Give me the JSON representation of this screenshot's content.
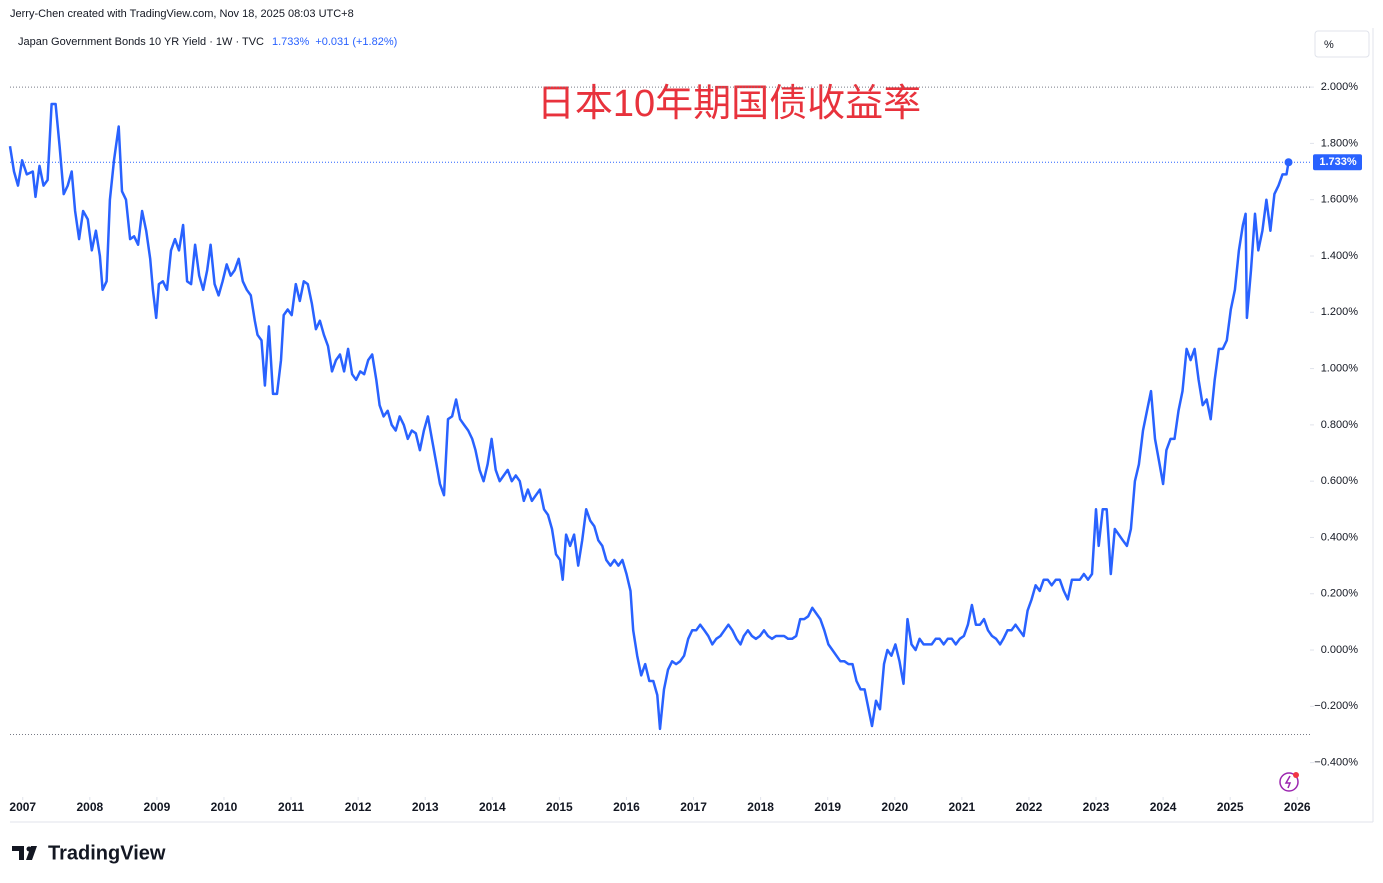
{
  "chart_data": {
    "type": "line",
    "credit": "Jerry-Chen created with TradingView.com, Nov 18, 2025 08:03 UTC+8",
    "title": "日本10年期国债收益率",
    "price": {
      "value": 1.733,
      "label": "1.733%"
    },
    "change": "+0.031 (+1.82%)",
    "unit_button": "%",
    "brand": "TradingView",
    "xlim": [
      2006.81,
      2026.19
    ],
    "xticks": [
      2007,
      2008,
      2009,
      2010,
      2011,
      2012,
      2013,
      2014,
      2015,
      2016,
      2017,
      2018,
      2019,
      2020,
      2021,
      2022,
      2023,
      2024,
      2025,
      2026
    ],
    "ylim": [
      -0.515,
      2.21
    ],
    "yticks": [
      {
        "value": 2.0,
        "label": "2.000%"
      },
      {
        "value": 1.8,
        "label": "1.800%"
      },
      {
        "value": 1.6,
        "label": "1.600%"
      },
      {
        "value": 1.4,
        "label": "1.400%"
      },
      {
        "value": 1.2,
        "label": "1.200%"
      },
      {
        "value": 1.0,
        "label": "1.000%"
      },
      {
        "value": 0.8,
        "label": "0.800%"
      },
      {
        "value": 0.6,
        "label": "0.600%"
      },
      {
        "value": 0.4,
        "label": "0.400%"
      },
      {
        "value": 0.2,
        "label": "0.200%"
      },
      {
        "value": 0,
        "label": "0.000%"
      },
      {
        "value": -0.2,
        "label": "−0.200%"
      },
      {
        "value": -0.4,
        "label": "−0.400%"
      }
    ],
    "hlines": [
      2.0,
      -0.3
    ],
    "grid": false,
    "x": [
      2006.81,
      2006.87,
      2006.93,
      2006.99,
      2007.06,
      2007.15,
      2007.19,
      2007.25,
      2007.31,
      2007.37,
      2007.43,
      2007.49,
      2007.55,
      2007.61,
      2007.67,
      2007.73,
      2007.78,
      2007.84,
      2007.9,
      2007.97,
      2008.03,
      2008.09,
      2008.15,
      2008.19,
      2008.25,
      2008.3,
      2008.36,
      2008.43,
      2008.48,
      2008.54,
      2008.6,
      2008.66,
      2008.72,
      2008.78,
      2008.84,
      2008.9,
      2008.94,
      2008.99,
      2009.03,
      2009.09,
      2009.15,
      2009.21,
      2009.27,
      2009.33,
      2009.39,
      2009.45,
      2009.51,
      2009.57,
      2009.63,
      2009.69,
      2009.75,
      2009.8,
      2009.86,
      2009.92,
      2009.98,
      2010.04,
      2010.1,
      2010.16,
      2010.22,
      2010.28,
      2010.34,
      2010.4,
      2010.46,
      2010.5,
      2010.56,
      2010.61,
      2010.67,
      2010.73,
      2010.79,
      2010.85,
      2010.89,
      2010.95,
      2011.01,
      2011.07,
      2011.13,
      2011.19,
      2011.25,
      2011.31,
      2011.37,
      2011.43,
      2011.49,
      2011.55,
      2011.61,
      2011.67,
      2011.73,
      2011.79,
      2011.85,
      2011.91,
      2011.97,
      2012.03,
      2012.09,
      2012.15,
      2012.21,
      2012.27,
      2012.32,
      2012.38,
      2012.44,
      2012.5,
      2012.56,
      2012.62,
      2012.68,
      2012.74,
      2012.8,
      2012.86,
      2012.92,
      2012.98,
      2013.04,
      2013.1,
      2013.16,
      2013.22,
      2013.28,
      2013.34,
      2013.4,
      2013.46,
      2013.52,
      2013.58,
      2013.64,
      2013.7,
      2013.75,
      2013.81,
      2013.87,
      2013.93,
      2013.99,
      2014.05,
      2014.11,
      2014.17,
      2014.23,
      2014.29,
      2014.35,
      2014.41,
      2014.47,
      2014.53,
      2014.59,
      2014.65,
      2014.71,
      2014.77,
      2014.83,
      2014.89,
      2014.95,
      2015.01,
      2015.05,
      2015.1,
      2015.16,
      2015.22,
      2015.28,
      2015.34,
      2015.4,
      2015.46,
      2015.52,
      2015.58,
      2015.64,
      2015.7,
      2015.76,
      2015.82,
      2015.88,
      2015.94,
      2016.0,
      2016.06,
      2016.1,
      2016.16,
      2016.22,
      2016.28,
      2016.34,
      2016.4,
      2016.46,
      2016.5,
      2016.56,
      2016.62,
      2016.68,
      2016.74,
      2016.8,
      2016.86,
      2016.92,
      2016.98,
      2017.04,
      2017.1,
      2017.16,
      2017.22,
      2017.28,
      2017.34,
      2017.4,
      2017.46,
      2017.52,
      2017.58,
      2017.64,
      2017.7,
      2017.75,
      2017.81,
      2017.87,
      2017.93,
      2017.99,
      2018.05,
      2018.11,
      2018.17,
      2018.23,
      2018.29,
      2018.35,
      2018.41,
      2018.47,
      2018.53,
      2018.59,
      2018.65,
      2018.71,
      2018.77,
      2018.83,
      2018.89,
      2018.95,
      2019.01,
      2019.07,
      2019.13,
      2019.19,
      2019.25,
      2019.31,
      2019.37,
      2019.43,
      2019.49,
      2019.55,
      2019.61,
      2019.66,
      2019.72,
      2019.78,
      2019.84,
      2019.89,
      2019.95,
      2020.01,
      2020.07,
      2020.13,
      2020.19,
      2020.25,
      2020.31,
      2020.37,
      2020.43,
      2020.49,
      2020.55,
      2020.61,
      2020.67,
      2020.73,
      2020.79,
      2020.85,
      2020.91,
      2020.97,
      2021.03,
      2021.09,
      2021.15,
      2021.21,
      2021.27,
      2021.33,
      2021.39,
      2021.45,
      2021.51,
      2021.57,
      2021.62,
      2021.68,
      2021.74,
      2021.8,
      2021.86,
      2021.92,
      2021.98,
      2022.04,
      2022.1,
      2022.16,
      2022.22,
      2022.28,
      2022.34,
      2022.4,
      2022.46,
      2022.52,
      2022.58,
      2022.64,
      2022.7,
      2022.76,
      2022.82,
      2022.88,
      2022.94,
      2023.0,
      2023.04,
      2023.1,
      2023.16,
      2023.22,
      2023.28,
      2023.34,
      2023.4,
      2023.46,
      2023.52,
      2023.58,
      2023.64,
      2023.7,
      2023.76,
      2023.82,
      2023.88,
      2023.94,
      2024.0,
      2024.05,
      2024.11,
      2024.17,
      2024.23,
      2024.29,
      2024.35,
      2024.41,
      2024.47,
      2024.53,
      2024.59,
      2024.65,
      2024.71,
      2024.77,
      2024.83,
      2024.89,
      2024.95,
      2025.01,
      2025.07,
      2025.13,
      2025.19,
      2025.23,
      2025.25,
      2025.31,
      2025.37,
      2025.42,
      2025.48,
      2025.54,
      2025.6,
      2025.66,
      2025.72,
      2025.78,
      2025.84,
      2025.87
    ],
    "series": [
      {
        "name": "Japan Government Bonds 10 YR Yield · 1W · TVC",
        "color": "#2962ff",
        "values": [
          1.79,
          1.7,
          1.65,
          1.74,
          1.69,
          1.7,
          1.61,
          1.72,
          1.65,
          1.67,
          1.94,
          1.94,
          1.79,
          1.62,
          1.65,
          1.7,
          1.56,
          1.46,
          1.56,
          1.53,
          1.42,
          1.49,
          1.4,
          1.28,
          1.31,
          1.6,
          1.74,
          1.86,
          1.63,
          1.6,
          1.46,
          1.47,
          1.44,
          1.56,
          1.49,
          1.39,
          1.28,
          1.18,
          1.3,
          1.31,
          1.28,
          1.42,
          1.46,
          1.42,
          1.51,
          1.31,
          1.3,
          1.44,
          1.33,
          1.28,
          1.35,
          1.44,
          1.3,
          1.26,
          1.31,
          1.37,
          1.33,
          1.35,
          1.39,
          1.31,
          1.28,
          1.26,
          1.17,
          1.12,
          1.1,
          0.94,
          1.15,
          0.91,
          0.91,
          1.03,
          1.19,
          1.21,
          1.19,
          1.3,
          1.24,
          1.31,
          1.3,
          1.23,
          1.14,
          1.17,
          1.12,
          1.08,
          0.99,
          1.03,
          1.05,
          0.99,
          1.07,
          0.98,
          0.96,
          0.99,
          0.98,
          1.03,
          1.05,
          0.96,
          0.87,
          0.83,
          0.85,
          0.8,
          0.78,
          0.83,
          0.8,
          0.75,
          0.78,
          0.77,
          0.71,
          0.78,
          0.83,
          0.75,
          0.67,
          0.59,
          0.55,
          0.82,
          0.83,
          0.89,
          0.82,
          0.8,
          0.78,
          0.75,
          0.71,
          0.64,
          0.6,
          0.66,
          0.75,
          0.64,
          0.6,
          0.62,
          0.64,
          0.6,
          0.62,
          0.6,
          0.53,
          0.57,
          0.53,
          0.55,
          0.57,
          0.5,
          0.48,
          0.43,
          0.34,
          0.32,
          0.25,
          0.41,
          0.37,
          0.41,
          0.3,
          0.39,
          0.5,
          0.46,
          0.44,
          0.39,
          0.37,
          0.32,
          0.3,
          0.32,
          0.3,
          0.32,
          0.27,
          0.21,
          0.07,
          -0.02,
          -0.09,
          -0.05,
          -0.11,
          -0.11,
          -0.16,
          -0.28,
          -0.14,
          -0.07,
          -0.04,
          -0.05,
          -0.04,
          -0.02,
          0.04,
          0.07,
          0.07,
          0.09,
          0.07,
          0.05,
          0.02,
          0.04,
          0.05,
          0.07,
          0.09,
          0.07,
          0.04,
          0.02,
          0.05,
          0.07,
          0.05,
          0.04,
          0.05,
          0.07,
          0.05,
          0.04,
          0.05,
          0.05,
          0.05,
          0.04,
          0.04,
          0.05,
          0.11,
          0.11,
          0.12,
          0.15,
          0.13,
          0.11,
          0.07,
          0.02,
          0.0,
          -0.02,
          -0.04,
          -0.04,
          -0.05,
          -0.05,
          -0.11,
          -0.14,
          -0.14,
          -0.21,
          -0.27,
          -0.18,
          -0.21,
          -0.05,
          0.0,
          -0.02,
          0.02,
          -0.04,
          -0.12,
          0.11,
          0.02,
          0.0,
          0.04,
          0.02,
          0.02,
          0.02,
          0.04,
          0.04,
          0.02,
          0.04,
          0.04,
          0.02,
          0.04,
          0.05,
          0.09,
          0.16,
          0.09,
          0.09,
          0.11,
          0.07,
          0.05,
          0.04,
          0.02,
          0.04,
          0.07,
          0.07,
          0.09,
          0.07,
          0.05,
          0.14,
          0.18,
          0.23,
          0.21,
          0.25,
          0.25,
          0.23,
          0.25,
          0.25,
          0.21,
          0.18,
          0.25,
          0.25,
          0.25,
          0.27,
          0.25,
          0.27,
          0.5,
          0.37,
          0.5,
          0.5,
          0.27,
          0.43,
          0.41,
          0.39,
          0.37,
          0.43,
          0.6,
          0.66,
          0.78,
          0.85,
          0.92,
          0.75,
          0.67,
          0.59,
          0.71,
          0.75,
          0.75,
          0.85,
          0.92,
          1.07,
          1.03,
          1.07,
          0.96,
          0.87,
          0.89,
          0.82,
          0.96,
          1.07,
          1.07,
          1.1,
          1.21,
          1.28,
          1.42,
          1.51,
          1.55,
          1.18,
          1.35,
          1.55,
          1.42,
          1.49,
          1.6,
          1.49,
          1.62,
          1.65,
          1.69,
          1.69,
          1.733
        ]
      }
    ]
  }
}
